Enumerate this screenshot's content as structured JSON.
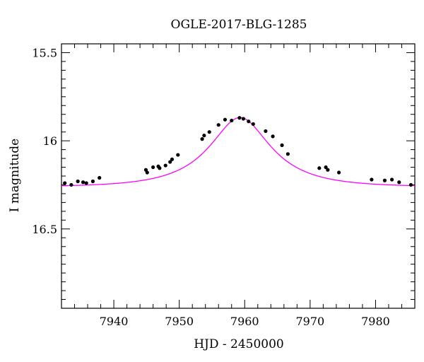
{
  "chart_data": {
    "type": "scatter",
    "title": "OGLE-2017-BLG-1285",
    "xlabel": "HJD - 2450000",
    "ylabel": "I magnitude",
    "xlim": [
      7932,
      7986
    ],
    "ylim": [
      16.95,
      15.45
    ],
    "y_inverted": true,
    "x_ticks": [
      7940,
      7950,
      7960,
      7970,
      7980
    ],
    "x_tick_labels": [
      "7940",
      "7950",
      "7960",
      "7970",
      "7980"
    ],
    "y_ticks": [
      15.5,
      16,
      16.5
    ],
    "y_tick_labels": [
      "15.5",
      "16",
      "16.5"
    ],
    "grid": false,
    "colors": {
      "data": "#000000",
      "model": "#ff00ff",
      "axes": "#000000"
    },
    "series": [
      {
        "kind": "points",
        "x": [
          7932.5,
          7933.5,
          7934.5,
          7935.3,
          7935.8,
          7936.8,
          7937.8,
          7944.9,
          7945.1,
          7946.0,
          7946.8,
          7947.0,
          7947.9,
          7948.6,
          7948.9,
          7949.8,
          7953.5,
          7953.8,
          7954.6,
          7956.0,
          7957.0,
          7958.0,
          7959.2,
          7959.8,
          7960.6,
          7961.3,
          7963.2,
          7964.3,
          7965.7,
          7966.6,
          7971.4,
          7972.4,
          7972.7,
          7974.4,
          7979.4,
          7981.4,
          7982.5,
          7983.6,
          7985.4
        ],
        "y": [
          16.24,
          16.25,
          16.23,
          16.235,
          16.24,
          16.23,
          16.21,
          16.165,
          16.18,
          16.15,
          16.145,
          16.155,
          16.14,
          16.12,
          16.105,
          16.08,
          15.99,
          15.97,
          15.95,
          15.91,
          15.88,
          15.885,
          15.87,
          15.875,
          15.89,
          15.905,
          15.945,
          15.975,
          16.025,
          16.075,
          16.155,
          16.15,
          16.165,
          16.18,
          16.22,
          16.225,
          16.22,
          16.235,
          16.25
        ],
        "yerr": 0.008
      },
      {
        "kind": "model",
        "t0": 7959.3,
        "u0": 0.5,
        "tE": 9.8,
        "base_mag": 16.262
      }
    ]
  }
}
